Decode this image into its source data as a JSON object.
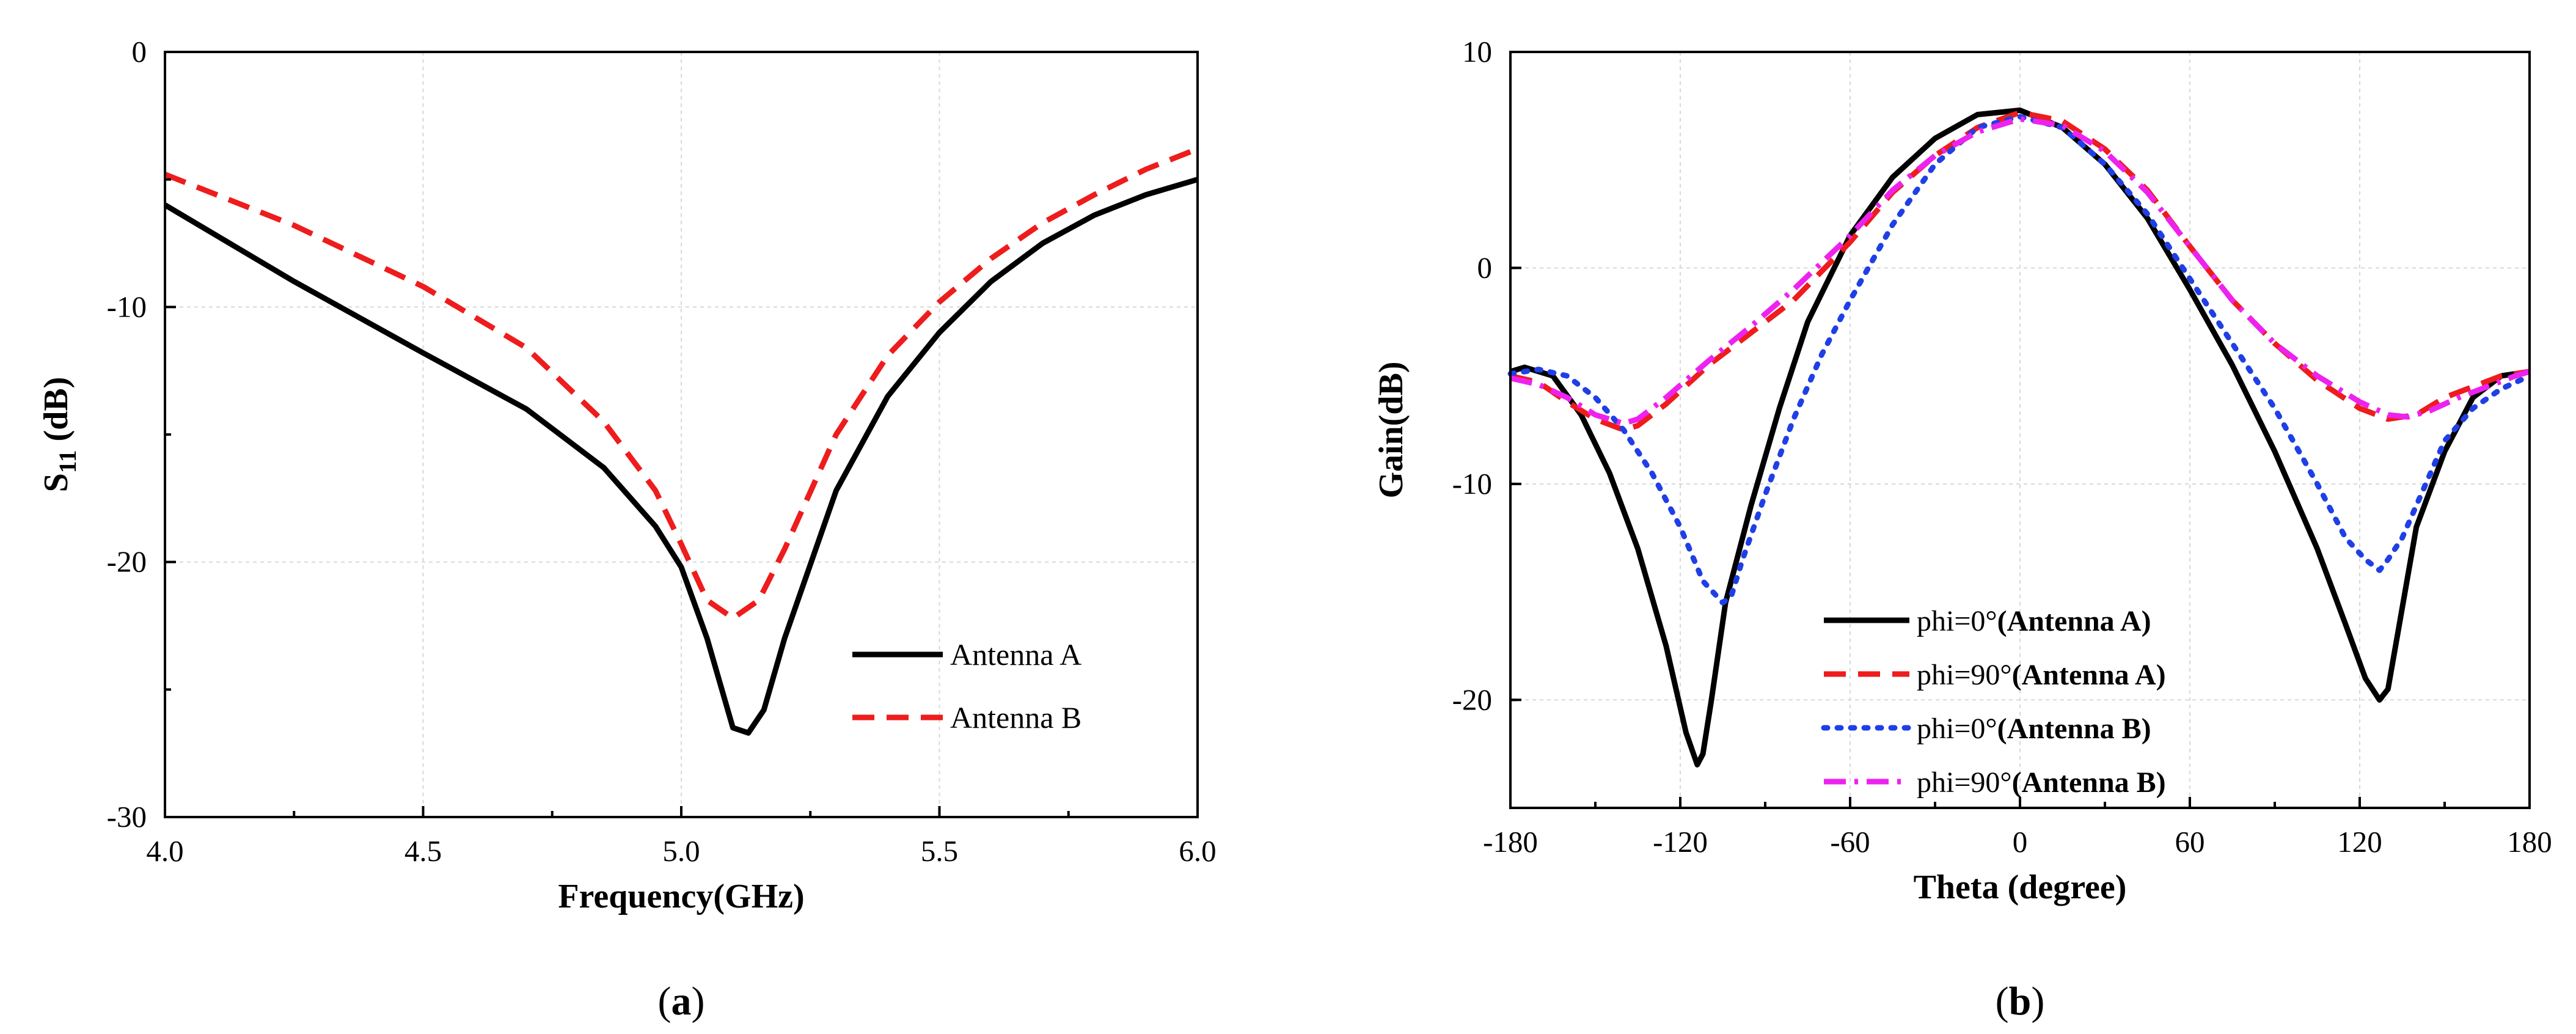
{
  "chart_data": [
    {
      "type": "line",
      "panel": "a",
      "caption": "a",
      "title": "",
      "xlabel": "Frequency(GHz)",
      "ylabel_main": "S",
      "ylabel_sub": "11",
      "ylabel_tail": " (dB)",
      "xlim": [
        4.0,
        6.0
      ],
      "ylim": [
        -30,
        0
      ],
      "xticks": [
        "4.0",
        "4.5",
        "5.0",
        "5.5",
        "6.0"
      ],
      "yticks": [
        "0",
        "-10",
        "-20",
        "-30"
      ],
      "grid": true,
      "legend_position": "bottom-right",
      "series": [
        {
          "name": "Antenna A",
          "color": "#000000",
          "dash": "solid",
          "x": [
            4.0,
            4.25,
            4.5,
            4.7,
            4.85,
            4.95,
            5.0,
            5.05,
            5.1,
            5.13,
            5.16,
            5.2,
            5.3,
            5.4,
            5.5,
            5.6,
            5.7,
            5.8,
            5.9,
            6.0
          ],
          "y": [
            -6.0,
            -9.0,
            -11.8,
            -14.0,
            -16.3,
            -18.6,
            -20.2,
            -23.0,
            -26.5,
            -26.7,
            -25.8,
            -23.0,
            -17.2,
            -13.5,
            -11.0,
            -9.0,
            -7.5,
            -6.4,
            -5.6,
            -5.0
          ]
        },
        {
          "name": "Antenna B",
          "color": "#ee1c1c",
          "dash": "dashed",
          "x": [
            4.0,
            4.25,
            4.5,
            4.7,
            4.85,
            4.95,
            5.0,
            5.05,
            5.1,
            5.15,
            5.2,
            5.3,
            5.4,
            5.5,
            5.6,
            5.7,
            5.8,
            5.9,
            6.0
          ],
          "y": [
            -4.8,
            -6.8,
            -9.2,
            -11.6,
            -14.5,
            -17.2,
            -19.3,
            -21.5,
            -22.2,
            -21.5,
            -19.5,
            -15.0,
            -11.9,
            -9.8,
            -8.1,
            -6.7,
            -5.6,
            -4.6,
            -3.8
          ]
        }
      ]
    },
    {
      "type": "line",
      "panel": "b",
      "caption": "b",
      "title": "",
      "xlabel": "Theta (degree)",
      "ylabel": "Gain(dB)",
      "xlim": [
        -180,
        180
      ],
      "ylim": [
        -25,
        10
      ],
      "xticks": [
        "-180",
        "-120",
        "-60",
        "0",
        "60",
        "120",
        "180"
      ],
      "yticks": [
        "10",
        "0",
        "-10",
        "-20"
      ],
      "grid": true,
      "legend_position": "bottom-center",
      "series": [
        {
          "name_prefix": "phi=0°",
          "name_suffix": "(Antenna A)",
          "color": "#000000",
          "dash": "solid",
          "x": [
            -180,
            -175,
            -165,
            -155,
            -145,
            -135,
            -125,
            -118,
            -114,
            -112,
            -109,
            -104,
            -95,
            -85,
            -75,
            -60,
            -45,
            -30,
            -15,
            0,
            15,
            30,
            45,
            60,
            75,
            90,
            105,
            115,
            122,
            127,
            130,
            134,
            140,
            150,
            160,
            170,
            180
          ],
          "y": [
            -4.8,
            -4.6,
            -5.0,
            -6.8,
            -9.5,
            -13.0,
            -17.5,
            -21.5,
            -23.0,
            -22.5,
            -20.0,
            -15.5,
            -11.0,
            -6.5,
            -2.5,
            1.5,
            4.2,
            6.0,
            7.1,
            7.3,
            6.5,
            4.8,
            2.3,
            -1.0,
            -4.5,
            -8.5,
            -13.0,
            -16.5,
            -19.0,
            -20.0,
            -19.5,
            -16.5,
            -12.0,
            -8.5,
            -6.0,
            -5.0,
            -4.8
          ]
        },
        {
          "name_prefix": "phi=90°",
          "name_suffix": "(Antenna A)",
          "color": "#ee1c1c",
          "dash": "dashed",
          "x": [
            -180,
            -170,
            -160,
            -150,
            -140,
            -135,
            -125,
            -110,
            -95,
            -80,
            -60,
            -45,
            -30,
            -15,
            0,
            15,
            30,
            45,
            60,
            75,
            90,
            105,
            120,
            130,
            140,
            150,
            160,
            170,
            180
          ],
          "y": [
            -5.0,
            -5.3,
            -6.2,
            -7.0,
            -7.5,
            -7.3,
            -6.3,
            -4.5,
            -3.0,
            -1.5,
            1.2,
            3.5,
            5.2,
            6.5,
            7.2,
            6.8,
            5.5,
            3.6,
            1.0,
            -1.5,
            -3.5,
            -5.2,
            -6.5,
            -7.0,
            -6.8,
            -6.0,
            -5.5,
            -5.0,
            -4.8
          ]
        },
        {
          "name_prefix": "phi=0°",
          "name_suffix": "(Antenna B)",
          "color": "#1f3fe6",
          "dash": "dotted",
          "x": [
            -180,
            -170,
            -160,
            -150,
            -140,
            -130,
            -120,
            -112,
            -105,
            -102,
            -98,
            -90,
            -80,
            -70,
            -60,
            -45,
            -30,
            -15,
            0,
            15,
            30,
            45,
            60,
            75,
            90,
            105,
            115,
            122,
            127,
            130,
            135,
            140,
            150,
            160,
            170,
            180
          ],
          "y": [
            -4.9,
            -4.7,
            -5.0,
            -6.0,
            -7.5,
            -9.5,
            -12.0,
            -14.5,
            -15.5,
            -15.2,
            -13.5,
            -10.5,
            -7.0,
            -4.0,
            -1.5,
            2.0,
            4.8,
            6.5,
            7.0,
            6.5,
            4.8,
            2.5,
            -0.5,
            -3.5,
            -6.5,
            -10.0,
            -12.5,
            -13.5,
            -14.0,
            -13.5,
            -12.5,
            -11.0,
            -8.0,
            -6.5,
            -5.6,
            -5.0
          ]
        },
        {
          "name_prefix": "phi=90°",
          "name_suffix": "(Antenna B)",
          "color": "#ee22ee",
          "dash": "dashdot",
          "x": [
            -180,
            -170,
            -160,
            -150,
            -140,
            -135,
            -125,
            -110,
            -95,
            -80,
            -60,
            -45,
            -30,
            -15,
            0,
            15,
            30,
            45,
            60,
            75,
            90,
            105,
            120,
            130,
            137,
            145,
            155,
            165,
            175,
            180
          ],
          "y": [
            -5.1,
            -5.4,
            -6.0,
            -6.8,
            -7.2,
            -7.0,
            -6.0,
            -4.3,
            -2.7,
            -1.0,
            1.5,
            3.6,
            5.2,
            6.3,
            6.9,
            6.6,
            5.4,
            3.5,
            1.0,
            -1.5,
            -3.5,
            -5.0,
            -6.2,
            -6.8,
            -6.9,
            -6.6,
            -6.0,
            -5.5,
            -5.0,
            -4.8
          ]
        }
      ]
    }
  ]
}
